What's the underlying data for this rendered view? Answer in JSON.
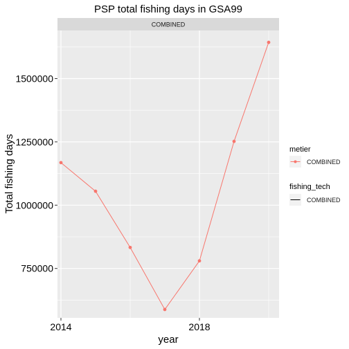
{
  "chart_data": {
    "type": "line",
    "title": "PSP total fishing days in GSA99",
    "facet_label": "COMBINED",
    "xlabel": "year",
    "ylabel": "Total fishing days",
    "xlim": [
      2013.9,
      2020.3
    ],
    "ylim": [
      555000,
      1690000
    ],
    "x_ticks": [
      2014,
      2018
    ],
    "x_tick_labels": [
      "2014",
      "2018"
    ],
    "y_ticks": [
      750000,
      1000000,
      1250000,
      1500000
    ],
    "y_tick_labels": [
      "750000",
      "1000000",
      "1250000",
      "1500000"
    ],
    "grid": true,
    "legend_position": "right",
    "series": [
      {
        "name": "COMBINED",
        "color": "#F8766D",
        "x": [
          2014,
          2015,
          2016,
          2017,
          2018,
          2019,
          2020
        ],
        "values": [
          1168000,
          1055000,
          833000,
          588000,
          780000,
          1252000,
          1643000
        ]
      }
    ],
    "legend": [
      {
        "title": "metier",
        "label": "COMBINED",
        "key": "line-point",
        "color": "#F8766D"
      },
      {
        "title": "fishing_tech",
        "label": "COMBINED",
        "key": "line",
        "color": "#000000"
      }
    ]
  }
}
